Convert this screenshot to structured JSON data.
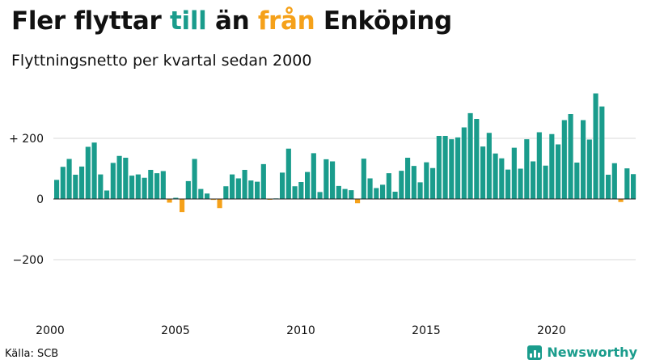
{
  "header": {
    "title_part1": "Fler flyttar ",
    "title_till": "till",
    "title_part2": " än ",
    "title_fran": "från",
    "title_part3": " Enköping",
    "subtitle": "Flyttningsnetto per kvartal sedan 2000"
  },
  "footer": {
    "source": "Källa: SCB",
    "brand": "Newsworthy"
  },
  "colors": {
    "positive": "#1a9c8c",
    "negative": "#f5a11a",
    "grid": "#d9d9d9",
    "zero_line": "#222222"
  },
  "chart_data": {
    "type": "bar",
    "title": "",
    "xlabel": "",
    "ylabel": "",
    "ylim": [
      -330,
      360
    ],
    "y_ticks": [
      {
        "value": 200,
        "label": "+ 200"
      },
      {
        "value": 0,
        "label": "0"
      },
      {
        "value": -200,
        "label": "−200"
      }
    ],
    "x_start": 2000,
    "x_ticks": [
      {
        "year": 2000,
        "label": "2000"
      },
      {
        "year": 2005,
        "label": "2005"
      },
      {
        "year": 2010,
        "label": "2010"
      },
      {
        "year": 2015,
        "label": "2015"
      },
      {
        "year": 2020,
        "label": "2020"
      }
    ],
    "grid": true,
    "legend": "none",
    "period": "quarter",
    "values": [
      63,
      106,
      132,
      80,
      107,
      172,
      186,
      81,
      28,
      119,
      142,
      136,
      77,
      81,
      70,
      96,
      85,
      92,
      -12,
      4,
      -43,
      59,
      132,
      33,
      18,
      -3,
      -30,
      42,
      81,
      68,
      96,
      61,
      57,
      115,
      -2,
      2,
      87,
      166,
      42,
      56,
      89,
      151,
      23,
      131,
      124,
      43,
      33,
      29,
      -14,
      133,
      68,
      36,
      47,
      85,
      24,
      93,
      136,
      109,
      55,
      121,
      102,
      208,
      208,
      197,
      203,
      236,
      283,
      264,
      173,
      218,
      150,
      134,
      97,
      169,
      100,
      197,
      124,
      220,
      110,
      214,
      180,
      260,
      280,
      120,
      260,
      196,
      348,
      305,
      80,
      118,
      -10,
      101,
      82
    ]
  }
}
